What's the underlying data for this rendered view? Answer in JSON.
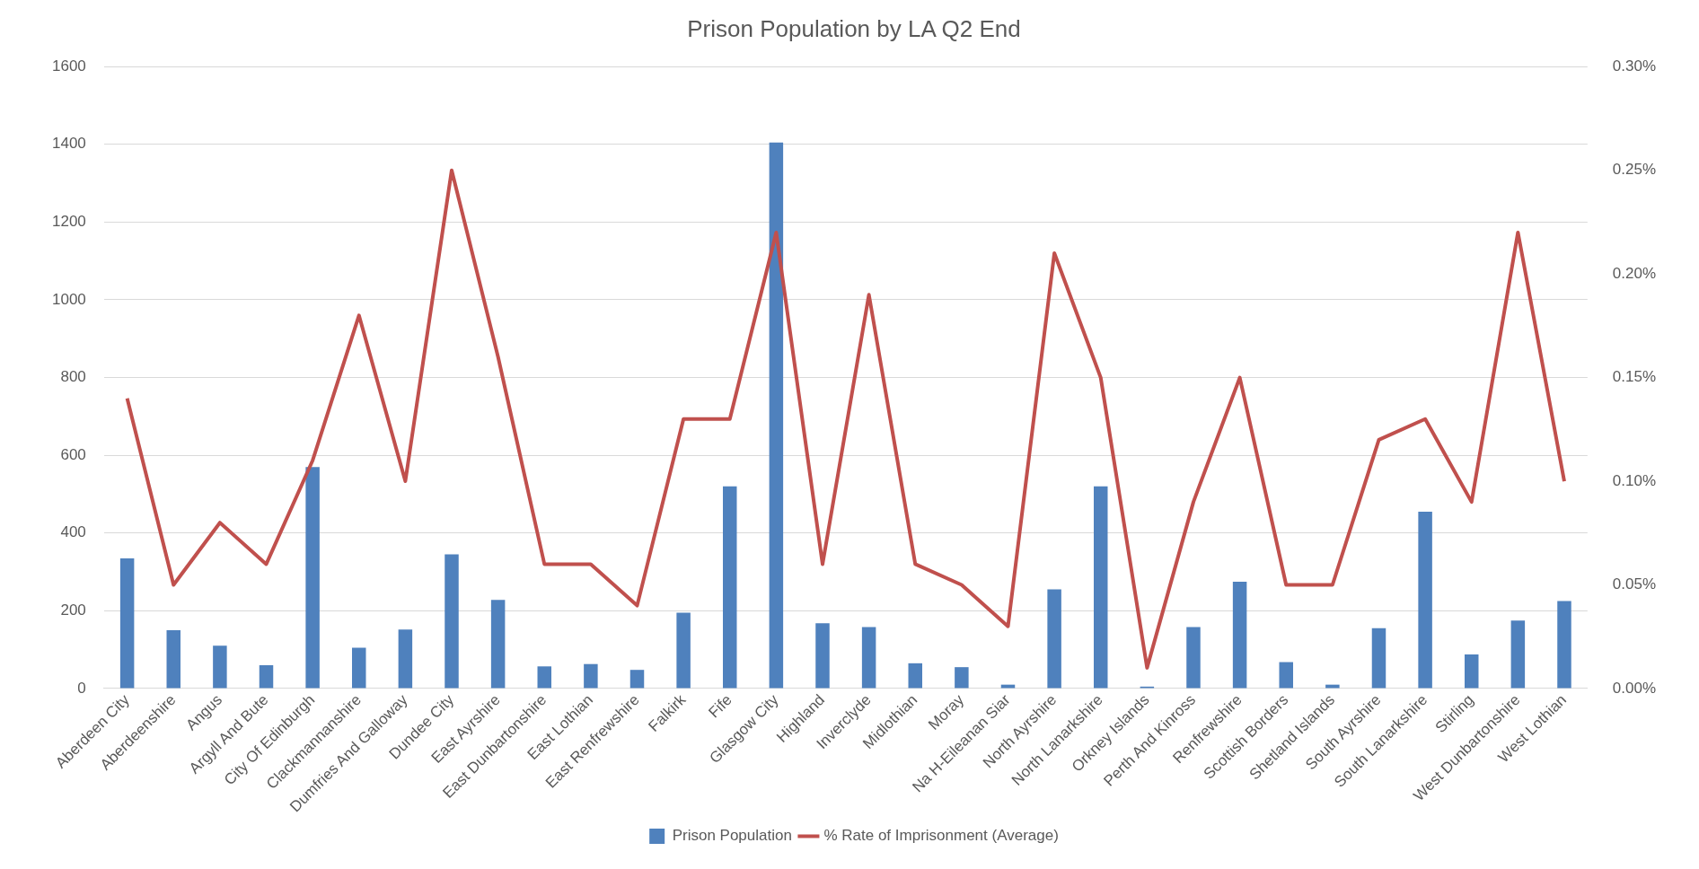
{
  "chart_data": {
    "type": "bar",
    "title": "Prison Population by LA Q2 End",
    "categories": [
      "Aberdeen City",
      "Aberdeenshire",
      "Angus",
      "Argyll And Bute",
      "City Of Edinburgh",
      "Clackmannanshire",
      "Dumfries And Galloway",
      "Dundee City",
      "East Ayrshire",
      "East Dunbartonshire",
      "East Lothian",
      "East Renfrewshire",
      "Falkirk",
      "Fife",
      "Glasgow City",
      "Highland",
      "Inverclyde",
      "Midlothian",
      "Moray",
      "Na H-Eileanan Siar",
      "North Ayrshire",
      "North Lanarkshire",
      "Orkney Islands",
      "Perth And Kinross",
      "Renfrewshire",
      "Scottish Borders",
      "Shetland Islands",
      "South Ayrshire",
      "South Lanarkshire",
      "Stirling",
      "West Dunbartonshire",
      "West Lothian"
    ],
    "series": [
      {
        "name": "Prison Population",
        "color": "#4f81bd",
        "values": [
          335,
          150,
          110,
          60,
          570,
          105,
          152,
          345,
          228,
          57,
          63,
          48,
          195,
          520,
          1405,
          168,
          158,
          65,
          55,
          10,
          255,
          520,
          5,
          158,
          275,
          68,
          10,
          155,
          455,
          88,
          175,
          225
        ]
      },
      {
        "name": "% Rate of Imprisonment (Average)",
        "type": "line",
        "axis": "y2",
        "color": "#c0504d",
        "values": [
          0.14,
          0.05,
          0.08,
          0.06,
          0.11,
          0.18,
          0.1,
          0.25,
          0.16,
          0.06,
          0.06,
          0.04,
          0.13,
          0.13,
          0.22,
          0.06,
          0.19,
          0.06,
          0.05,
          0.03,
          0.21,
          0.15,
          0.01,
          0.09,
          0.15,
          0.05,
          0.05,
          0.12,
          0.13,
          0.09,
          0.22,
          0.1
        ]
      }
    ],
    "ylim": [
      0,
      1600
    ],
    "yticks": [
      0,
      200,
      400,
      600,
      800,
      1000,
      1200,
      1400,
      1600
    ],
    "y2lim": [
      0,
      0.3
    ],
    "y2ticks": [
      {
        "value": 0,
        "label": "0.00%"
      },
      {
        "value": 0.05,
        "label": "0.05%"
      },
      {
        "value": 0.1,
        "label": "0.10%"
      },
      {
        "value": 0.15,
        "label": "0.15%"
      },
      {
        "value": 0.2,
        "label": "0.20%"
      },
      {
        "value": 0.25,
        "label": "0.25%"
      },
      {
        "value": 0.3,
        "label": "0.30%"
      }
    ],
    "grid": "y",
    "legend": "bottom",
    "marker": "none"
  }
}
